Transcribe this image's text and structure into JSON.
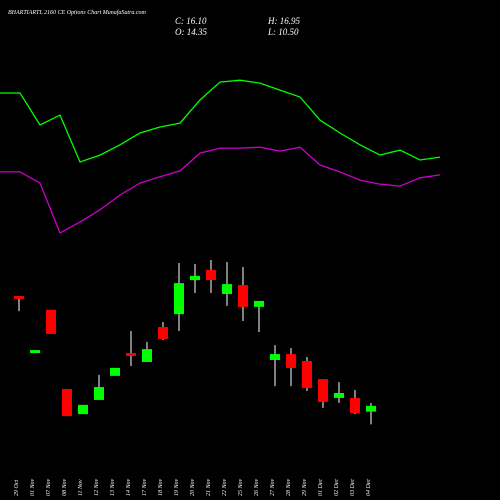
{
  "chart_data": {
    "type": "candlestick",
    "title": "BHARTIARTL 2160 CE Options Chart MunafaSutra.com",
    "ohlc_labels": [
      "C: 16.10",
      "H: 16.95",
      "O: 14.35",
      "L: 10.50"
    ],
    "categories": [
      "29 Oct",
      "01 Nov",
      "07 Nov",
      "08 Nov",
      "11 Nov",
      "12 Nov",
      "13 Nov",
      "14 Nov",
      "17 Nov",
      "18 Nov",
      "19 Nov",
      "20 Nov",
      "21 Nov",
      "22 Nov",
      "25 Nov",
      "26 Nov",
      "27 Nov",
      "28 Nov",
      "29 Nov",
      "01 Dec",
      "02 Dec",
      "03 Dec",
      "04 Dec"
    ],
    "open": [
      49.4,
      32.1,
      45.2,
      21.2,
      13.6,
      17.9,
      25.2,
      32.1,
      29.4,
      40.0,
      43.9,
      54.2,
      57.3,
      50.0,
      52.7,
      46.1,
      30.0,
      31.8,
      29.7,
      24.2,
      18.5,
      18.5,
      14.35
    ],
    "close": [
      48.5,
      33.0,
      37.9,
      13.0,
      16.4,
      21.8,
      27.6,
      31.2,
      33.3,
      36.4,
      53.3,
      55.5,
      54.2,
      53.0,
      46.1,
      47.9,
      31.8,
      27.6,
      21.5,
      17.3,
      20.0,
      13.9,
      16.1
    ],
    "high": [
      49.4,
      33.0,
      45.2,
      21.2,
      16.4,
      25.5,
      27.6,
      38.8,
      35.5,
      41.5,
      59.4,
      59.1,
      60.3,
      59.7,
      58.2,
      47.9,
      34.5,
      33.6,
      30.9,
      24.2,
      23.3,
      20.9,
      16.95
    ],
    "low": [
      44.8,
      32.1,
      37.9,
      13.0,
      13.6,
      17.9,
      25.2,
      28.2,
      29.4,
      36.1,
      38.8,
      50.3,
      50.3,
      46.4,
      41.8,
      38.5,
      22.1,
      22.1,
      20.6,
      15.5,
      17.0,
      13.6,
      10.5
    ],
    "up_color": "#00ff00",
    "down_color": "#ff0000",
    "ylim": [
      0,
      120
    ],
    "series": [
      {
        "color": "#00ff00",
        "values": [
          110.9,
          110.9,
          101.2,
          104.2,
          90.0,
          92.1,
          95.2,
          98.8,
          100.6,
          101.8,
          108.8,
          114.2,
          114.8,
          113.9,
          111.8,
          109.7,
          102.7,
          98.8,
          95.2,
          92.1,
          93.6,
          90.6,
          91.5
        ]
      },
      {
        "color": "#cc00cc",
        "values": [
          87.0,
          87.0,
          83.6,
          68.5,
          71.8,
          75.5,
          80.0,
          83.6,
          85.5,
          87.3,
          92.7,
          94.2,
          94.2,
          94.5,
          93.3,
          94.5,
          89.1,
          87.0,
          84.5,
          83.3,
          82.7,
          85.2,
          86.1
        ]
      }
    ]
  }
}
